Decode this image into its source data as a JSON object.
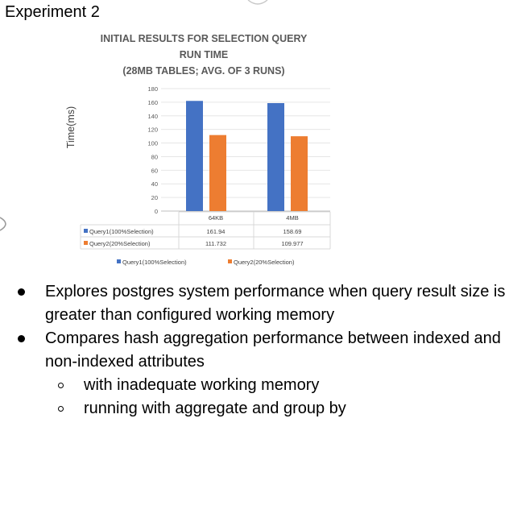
{
  "heading": "Experiment 2",
  "chart_data": {
    "type": "bar",
    "title_lines": [
      "INITIAL RESULTS FOR SELECTION QUERY",
      "RUN TIME",
      "(28MB TABLES; AVG. OF 3 RUNS)"
    ],
    "ylabel": "Time(ms)",
    "xlabel": "",
    "ylim": [
      0,
      180
    ],
    "yticks": [
      0,
      20,
      40,
      60,
      80,
      100,
      120,
      140,
      160,
      180
    ],
    "categories": [
      "64KB",
      "4MB"
    ],
    "series": [
      {
        "name": "Query1(100%Selection)",
        "color": "#4472C4",
        "values": [
          161.94,
          158.69
        ],
        "labels": [
          "161.94",
          "158.69"
        ]
      },
      {
        "name": "Query2(20%Selection)",
        "color": "#ED7D31",
        "values": [
          111.732,
          109.977
        ],
        "labels": [
          "111.732",
          "109.977"
        ]
      }
    ],
    "grid": true,
    "data_table": true,
    "legend": "bottom"
  },
  "bullets": [
    {
      "text": "Explores postgres system performance when query result size is greater than configured working memory",
      "sub": []
    },
    {
      "text": "Compares hash aggregation performance between indexed and non-indexed attributes",
      "sub": [
        "with inadequate working memory",
        "running with aggregate and group by"
      ]
    }
  ]
}
